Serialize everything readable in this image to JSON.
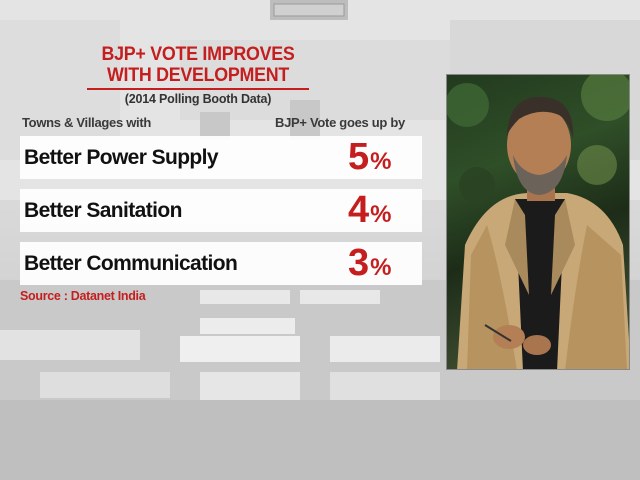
{
  "graphic": {
    "title_line1": "BJP+ VOTE IMPROVES",
    "title_line2": "WITH DEVELOPMENT",
    "subtitle": "(2014 Polling Booth Data)",
    "left_header": "Towns & Villages with",
    "right_header": "BJP+ Vote goes up by",
    "rows": [
      {
        "label": "Better Power Supply",
        "value": "5",
        "unit": "%"
      },
      {
        "label": "Better Sanitation",
        "value": "4",
        "unit": "%"
      },
      {
        "label": "Better Communication",
        "value": "3",
        "unit": "%"
      }
    ],
    "source": "Source : Datanet India"
  },
  "colors": {
    "accent": "#c41e1e",
    "text": "#111111",
    "row_bg": "#ffffff"
  }
}
